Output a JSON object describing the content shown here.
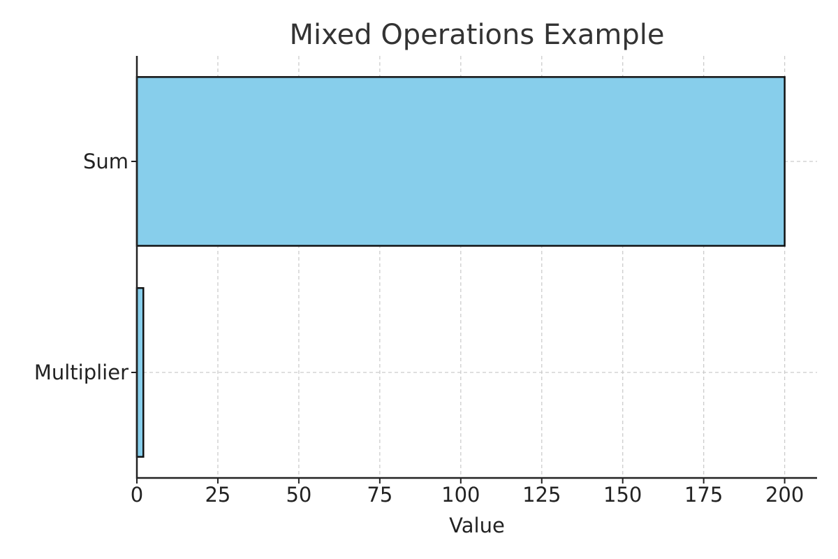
{
  "chart_data": {
    "type": "bar",
    "orientation": "horizontal",
    "title": "Mixed Operations Example",
    "xlabel": "Value",
    "ylabel": "",
    "categories": [
      "Multiplier",
      "Sum"
    ],
    "values": [
      2,
      200
    ],
    "xlim": [
      0,
      210
    ],
    "xticks": [
      0,
      25,
      50,
      75,
      100,
      125,
      150,
      175,
      200
    ],
    "grid": true,
    "colors": {
      "bar_fill": "#87CEEB",
      "bar_edge": "#111111"
    }
  }
}
